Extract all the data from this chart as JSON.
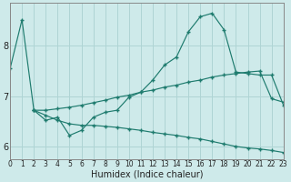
{
  "xlabel": "Humidex (Indice chaleur)",
  "bg_color": "#ceeaea",
  "line_color": "#1e7b6e",
  "grid_color": "#afd4d4",
  "x_ticks": [
    0,
    1,
    2,
    3,
    4,
    5,
    6,
    7,
    8,
    9,
    10,
    11,
    12,
    13,
    14,
    15,
    16,
    17,
    18,
    19,
    20,
    21,
    22,
    23
  ],
  "y_ticks": [
    6,
    7,
    8
  ],
  "xlim": [
    0,
    23
  ],
  "ylim": [
    5.75,
    8.85
  ],
  "s1_x": [
    0,
    1,
    2,
    3,
    4,
    5,
    6,
    7,
    8,
    9,
    10,
    11,
    12,
    13,
    14,
    15,
    16,
    17,
    18,
    19,
    20,
    21,
    22,
    23
  ],
  "s1_y": [
    7.55,
    8.52,
    6.72,
    6.52,
    6.58,
    6.22,
    6.32,
    6.58,
    6.68,
    6.72,
    6.98,
    7.08,
    7.32,
    7.62,
    7.78,
    8.28,
    8.58,
    8.65,
    8.32,
    7.48,
    7.45,
    7.42,
    7.42,
    6.82
  ],
  "s1_markers": [
    0,
    1,
    2,
    3,
    4,
    5,
    6,
    7,
    8,
    9,
    10,
    11,
    12,
    13,
    14,
    15,
    16,
    17,
    18,
    19,
    20,
    21,
    22,
    23
  ],
  "s2_x": [
    2,
    3,
    4,
    5,
    6,
    7,
    8,
    9,
    10,
    11,
    12,
    13,
    14,
    15,
    16,
    17,
    18,
    19,
    20,
    21,
    22,
    23
  ],
  "s2_y": [
    6.72,
    6.62,
    6.52,
    6.45,
    6.42,
    6.42,
    6.4,
    6.38,
    6.35,
    6.32,
    6.28,
    6.25,
    6.22,
    6.18,
    6.15,
    6.1,
    6.05,
    6.0,
    5.97,
    5.95,
    5.92,
    5.88
  ],
  "s3_x": [
    2,
    3,
    4,
    5,
    6,
    7,
    8,
    9,
    10,
    11,
    12,
    13,
    14,
    15,
    16,
    17,
    18,
    19,
    20,
    21,
    22,
    23
  ],
  "s3_y": [
    6.72,
    6.72,
    6.75,
    6.78,
    6.82,
    6.87,
    6.92,
    6.98,
    7.02,
    7.08,
    7.12,
    7.18,
    7.22,
    7.28,
    7.32,
    7.38,
    7.42,
    7.45,
    7.48,
    7.5,
    6.95,
    6.88
  ],
  "xlabel_fontsize": 7,
  "tick_fontsize": 5.5,
  "ytick_fontsize": 7
}
